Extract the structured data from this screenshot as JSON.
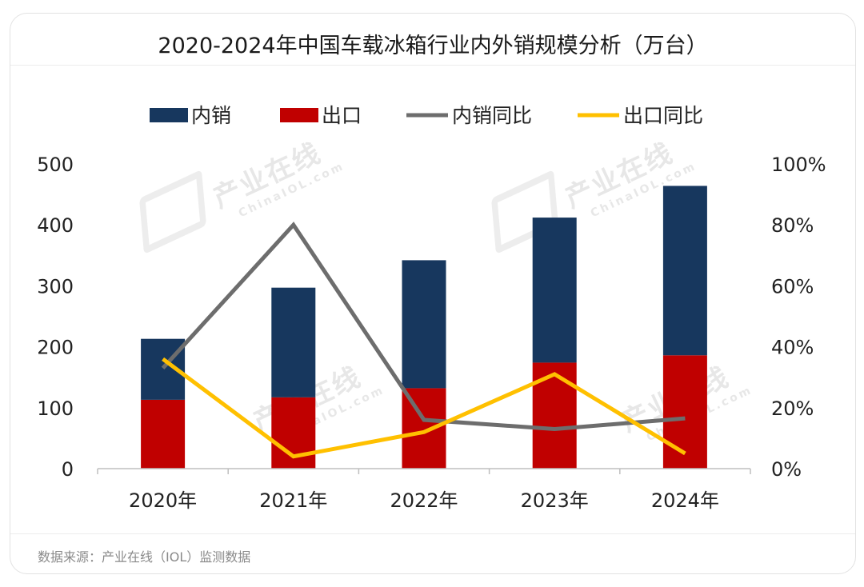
{
  "title": "2020-2024年中国车载冰箱行业内外销规模分析（万台）",
  "source": "数据来源：产业在线（IOL）监测数据",
  "watermark": {
    "cn": "产业在线",
    "en": "ChinaIOL.com"
  },
  "colors": {
    "domestic": "#17375e",
    "export": "#c00000",
    "domestic_yoy": "#6d6d6d",
    "export_yoy": "#ffc000"
  },
  "chart_data": {
    "type": "bar",
    "stacked": true,
    "categories": [
      "2020年",
      "2021年",
      "2022年",
      "2023年",
      "2024年"
    ],
    "series": [
      {
        "name": "内销",
        "type": "bar",
        "axis": "left",
        "values": [
          100,
          180,
          210,
          238,
          278
        ]
      },
      {
        "name": "出口",
        "type": "bar",
        "axis": "left",
        "values": [
          113,
          117,
          132,
          174,
          186
        ]
      },
      {
        "name": "内销同比",
        "type": "line",
        "axis": "right",
        "values": [
          33,
          80,
          16,
          13,
          16.5
        ]
      },
      {
        "name": "出口同比",
        "type": "line",
        "axis": "right",
        "values": [
          36,
          4,
          12,
          31,
          5
        ]
      }
    ],
    "ylim": [
      0,
      500
    ],
    "yticks": [
      "0",
      "100",
      "200",
      "300",
      "400",
      "500"
    ],
    "y2lim": [
      0,
      100
    ],
    "y2ticks": [
      "0%",
      "20%",
      "40%",
      "60%",
      "80%",
      "100%"
    ],
    "legend": "top",
    "grid": false
  }
}
